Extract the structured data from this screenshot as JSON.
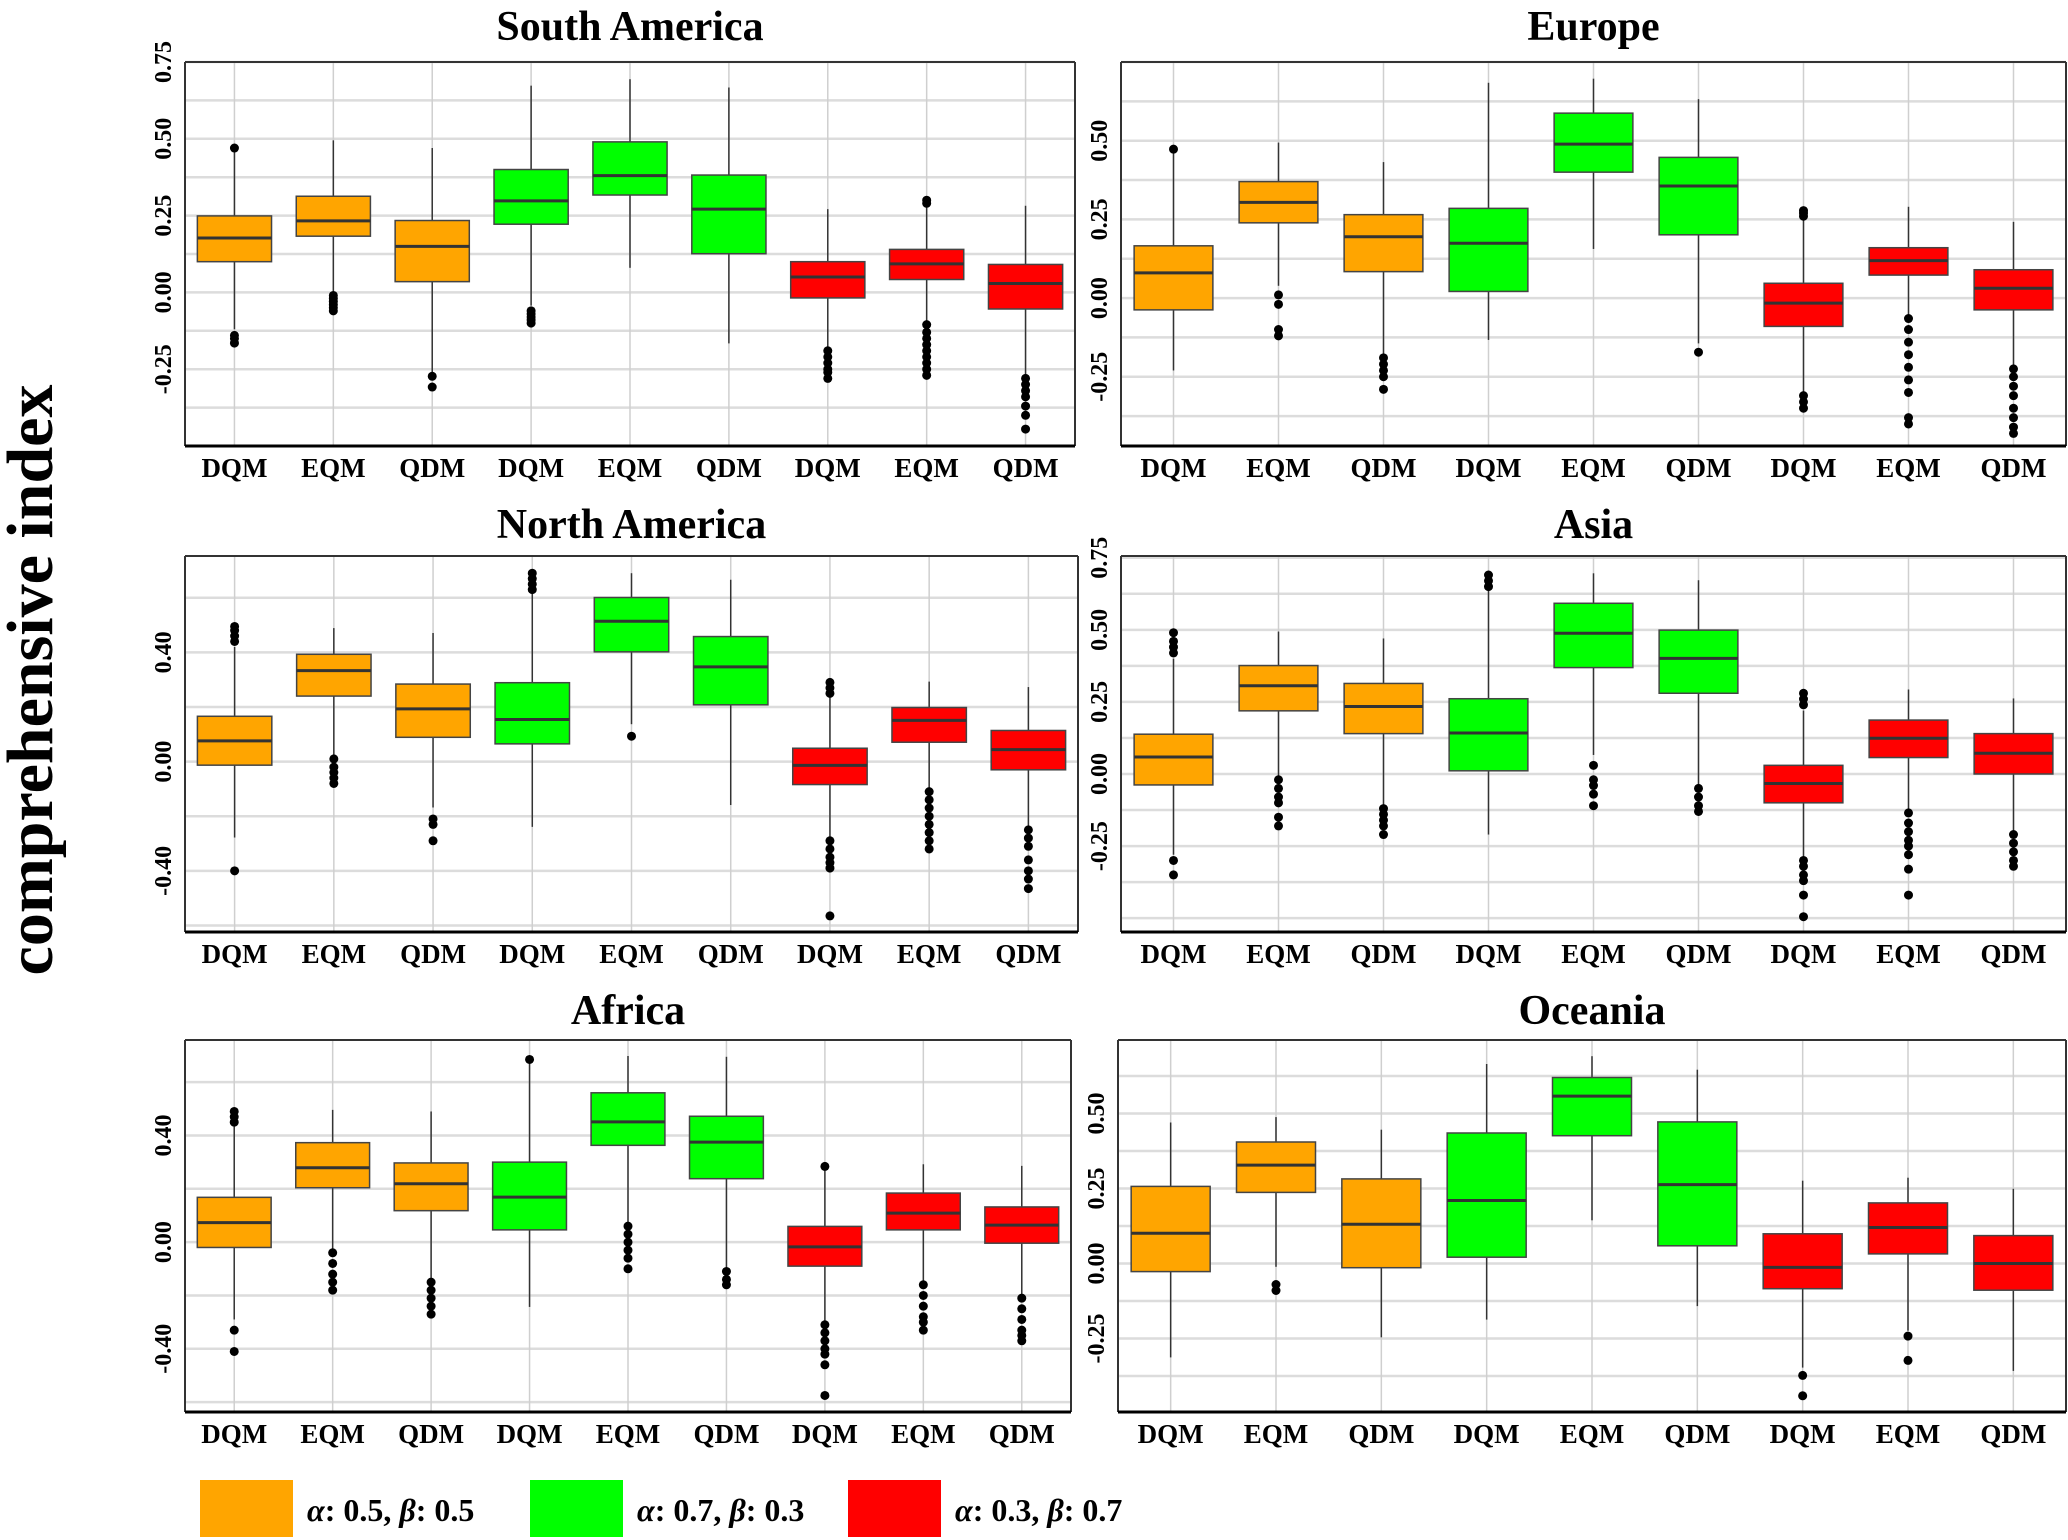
{
  "chart_data": {
    "type": "box",
    "ylabel": "comprehensive index",
    "categories": [
      "DQM",
      "EQM",
      "QDM",
      "DQM",
      "EQM",
      "QDM",
      "DQM",
      "EQM",
      "QDM"
    ],
    "groups": [
      "orange",
      "orange",
      "orange",
      "green",
      "green",
      "green",
      "red",
      "red",
      "red"
    ],
    "colors": {
      "orange": "#FFA500",
      "green": "#00FF00",
      "red": "#FF0000"
    },
    "legend": [
      {
        "group": "orange",
        "alpha_label": "α",
        "alpha_value": ": 0.5, ",
        "beta_label": "β",
        "beta_value": ": 0.5"
      },
      {
        "group": "green",
        "alpha_label": "α",
        "alpha_value": ": 0.7, ",
        "beta_label": "β",
        "beta_value": ": 0.3"
      },
      {
        "group": "red",
        "alpha_label": "α",
        "alpha_value": ": 0.3, ",
        "beta_label": "β",
        "beta_value": ": 0.7"
      }
    ],
    "box_fields": [
      "min",
      "q1",
      "median",
      "q3",
      "max",
      "outliers"
    ],
    "panels": [
      {
        "title": "South America",
        "ylim": [
          -0.5,
          0.75
        ],
        "ticks": [
          "-0.25",
          "0.00",
          "0.25",
          "0.50",
          "0.75"
        ],
        "tick_values": [
          -0.25,
          0,
          0.25,
          0.5,
          0.75
        ],
        "boxes": [
          [
            -0.12,
            0.1,
            0.177,
            0.249,
            0.46,
            [
              0.47,
              -0.14,
              -0.15,
              -0.165
            ]
          ],
          [
            -0.005,
            0.183,
            0.233,
            0.313,
            0.495,
            [
              -0.01,
              -0.02,
              -0.03,
              -0.04,
              -0.05,
              -0.06
            ]
          ],
          [
            -0.263,
            0.035,
            0.15,
            0.234,
            0.47,
            [
              -0.273,
              -0.308
            ]
          ],
          [
            -0.043,
            0.222,
            0.298,
            0.4,
            0.673,
            [
              -0.06,
              -0.07,
              -0.08,
              -0.09,
              -0.1
            ]
          ],
          [
            0.08,
            0.317,
            0.38,
            0.49,
            0.694,
            []
          ],
          [
            -0.166,
            0.126,
            0.271,
            0.382,
            0.667,
            []
          ],
          [
            -0.188,
            -0.018,
            0.05,
            0.1,
            0.271,
            [
              -0.19,
              -0.21,
              -0.23,
              -0.25,
              -0.26,
              -0.28
            ]
          ],
          [
            -0.102,
            0.042,
            0.093,
            0.14,
            0.28,
            [
              0.29,
              0.3,
              -0.105,
              -0.13,
              -0.15,
              -0.17,
              -0.19,
              -0.21,
              -0.23,
              -0.25,
              -0.27
            ]
          ],
          [
            -0.27,
            -0.054,
            0.029,
            0.091,
            0.282,
            [
              -0.28,
              -0.3,
              -0.32,
              -0.34,
              -0.37,
              -0.4,
              -0.445
            ]
          ]
        ]
      },
      {
        "title": "Europe",
        "ylim": [
          -0.47,
          0.75
        ],
        "ticks": [
          "-0.25",
          "0.00",
          "0.25",
          "0.50"
        ],
        "tick_values": [
          -0.25,
          0,
          0.25,
          0.5
        ],
        "boxes": [
          [
            -0.23,
            -0.0375,
            0.08,
            0.166,
            0.47,
            [
              0.473
            ]
          ],
          [
            0.039,
            0.239,
            0.304,
            0.37,
            0.494,
            [
              0.01,
              -0.02,
              -0.1,
              -0.12
            ]
          ],
          [
            -0.185,
            0.084,
            0.195,
            0.265,
            0.432,
            [
              -0.19,
              -0.21,
              -0.23,
              -0.25,
              -0.29
            ]
          ],
          [
            -0.133,
            0.021,
            0.174,
            0.285,
            0.684,
            []
          ],
          [
            0.156,
            0.4,
            0.489,
            0.5875,
            0.697,
            []
          ],
          [
            -0.144,
            0.201,
            0.356,
            0.447,
            0.632,
            [
              -0.172
            ]
          ],
          [
            -0.3,
            -0.09,
            -0.016,
            0.047,
            0.25,
            [
              0.26,
              0.27,
              0.278,
              -0.31,
              -0.33,
              -0.35
            ]
          ],
          [
            -0.06,
            0.073,
            0.119,
            0.16,
            0.29,
            [
              -0.065,
              -0.1,
              -0.14,
              -0.18,
              -0.22,
              -0.26,
              -0.3,
              -0.38,
              -0.4
            ]
          ],
          [
            -0.22,
            -0.0375,
            0.031,
            0.09,
            0.242,
            [
              -0.225,
              -0.25,
              -0.28,
              -0.31,
              -0.35,
              -0.38,
              -0.41,
              -0.43
            ]
          ]
        ]
      },
      {
        "title": "North America",
        "ylim": [
          -0.624,
          0.753
        ],
        "ticks": [
          "-0.40",
          "0.00",
          "0.40"
        ],
        "tick_values": [
          -0.4,
          0,
          0.4
        ],
        "boxes": [
          [
            -0.278,
            -0.013,
            0.076,
            0.166,
            0.42,
            [
              0.44,
              0.46,
              0.48,
              0.495,
              -0.4
            ]
          ],
          [
            0.02,
            0.24,
            0.333,
            0.393,
            0.489,
            [
              0.01,
              -0.02,
              -0.04,
              -0.06,
              -0.08
            ]
          ],
          [
            -0.168,
            0.089,
            0.193,
            0.284,
            0.471,
            [
              -0.21,
              -0.23,
              -0.29
            ]
          ],
          [
            -0.239,
            0.065,
            0.154,
            0.289,
            0.619,
            [
              0.63,
              0.65,
              0.67,
              0.69
            ]
          ],
          [
            0.137,
            0.402,
            0.514,
            0.601,
            0.69,
            [
              0.093
            ]
          ],
          [
            -0.159,
            0.208,
            0.347,
            0.458,
            0.666,
            []
          ],
          [
            -0.28,
            -0.084,
            -0.014,
            0.049,
            0.246,
            [
              0.25,
              0.27,
              0.29,
              -0.29,
              -0.32,
              -0.35,
              -0.37,
              -0.39,
              -0.565
            ]
          ],
          [
            -0.109,
            0.071,
            0.151,
            0.198,
            0.293,
            [
              -0.11,
              -0.14,
              -0.17,
              -0.2,
              -0.23,
              -0.26,
              -0.29,
              -0.32
            ]
          ],
          [
            -0.245,
            -0.03,
            0.044,
            0.114,
            0.273,
            [
              -0.25,
              -0.28,
              -0.31,
              -0.36,
              -0.4,
              -0.43,
              -0.465
            ]
          ]
        ]
      },
      {
        "title": "Asia",
        "ylim": [
          -0.548,
          0.756
        ],
        "ticks": [
          "-0.25",
          "0.00",
          "0.25",
          "0.50",
          "0.75"
        ],
        "tick_values": [
          -0.25,
          0,
          0.25,
          0.5,
          0.75
        ],
        "boxes": [
          [
            -0.28,
            -0.038,
            0.059,
            0.138,
            0.4,
            [
              0.42,
              0.44,
              0.46,
              0.49,
              -0.3,
              -0.35
            ]
          ],
          [
            -0.013,
            0.219,
            0.306,
            0.376,
            0.494,
            [
              -0.02,
              -0.05,
              -0.08,
              -0.1,
              -0.15,
              -0.18
            ]
          ],
          [
            -0.111,
            0.14,
            0.234,
            0.314,
            0.47,
            [
              -0.12,
              -0.14,
              -0.16,
              -0.18,
              -0.21
            ]
          ],
          [
            -0.21,
            0.011,
            0.142,
            0.261,
            0.635,
            [
              0.65,
              0.67,
              0.69
            ]
          ],
          [
            0.066,
            0.369,
            0.488,
            0.592,
            0.696,
            [
              0.03,
              -0.02,
              -0.04,
              -0.07,
              -0.11
            ]
          ],
          [
            -0.044,
            0.28,
            0.401,
            0.499,
            0.672,
            [
              -0.05,
              -0.08,
              -0.11,
              -0.13
            ]
          ],
          [
            -0.29,
            -0.1,
            -0.033,
            0.03,
            0.22,
            [
              0.24,
              0.26,
              0.28,
              -0.3,
              -0.32,
              -0.35,
              -0.37,
              -0.42,
              -0.495
            ]
          ],
          [
            -0.133,
            0.057,
            0.124,
            0.187,
            0.293,
            [
              -0.135,
              -0.17,
              -0.2,
              -0.23,
              -0.25,
              -0.28,
              -0.33,
              -0.42
            ]
          ],
          [
            -0.206,
            0,
            0.072,
            0.14,
            0.262,
            [
              -0.21,
              -0.24,
              -0.27,
              -0.3,
              -0.32
            ]
          ]
        ]
      },
      {
        "title": "Africa",
        "ylim": [
          -0.637,
          0.758
        ],
        "ticks": [
          "-0.40",
          "0.00",
          "0.40"
        ],
        "tick_values": [
          -0.4,
          0,
          0.4
        ],
        "boxes": [
          [
            -0.29,
            -0.02,
            0.073,
            0.168,
            0.44,
            [
              0.45,
              0.47,
              0.49,
              -0.33,
              -0.41
            ]
          ],
          [
            -0.038,
            0.204,
            0.279,
            0.373,
            0.496,
            [
              -0.04,
              -0.08,
              -0.12,
              -0.15,
              -0.18
            ]
          ],
          [
            -0.147,
            0.118,
            0.219,
            0.297,
            0.49,
            [
              -0.15,
              -0.18,
              -0.21,
              -0.24,
              -0.27
            ]
          ],
          [
            -0.243,
            0.046,
            0.169,
            0.3,
            0.67,
            [
              0.685
            ]
          ],
          [
            0.07,
            0.363,
            0.451,
            0.56,
            0.698,
            [
              0.06,
              0.03,
              0,
              -0.03,
              -0.06,
              -0.1
            ]
          ],
          [
            -0.105,
            0.238,
            0.375,
            0.472,
            0.695,
            [
              -0.11,
              -0.14,
              -0.16
            ]
          ],
          [
            -0.303,
            -0.09,
            -0.018,
            0.059,
            0.28,
            [
              0.284,
              -0.31,
              -0.34,
              -0.37,
              -0.4,
              -0.42,
              -0.46,
              -0.575
            ]
          ],
          [
            -0.159,
            0.046,
            0.109,
            0.184,
            0.292,
            [
              -0.16,
              -0.2,
              -0.24,
              -0.28,
              -0.3,
              -0.33
            ]
          ],
          [
            -0.2,
            -0.004,
            0.064,
            0.132,
            0.286,
            [
              -0.21,
              -0.25,
              -0.29,
              -0.33,
              -0.35,
              -0.37
            ]
          ]
        ]
      },
      {
        "title": "Oceania",
        "ylim": [
          -0.495,
          0.745
        ],
        "ticks": [
          "-0.25",
          "0.00",
          "0.25",
          "0.50"
        ],
        "tick_values": [
          -0.25,
          0,
          0.25,
          0.5
        ],
        "boxes": [
          [
            -0.313,
            -0.027,
            0.101,
            0.257,
            0.47,
            []
          ],
          [
            -0.011,
            0.237,
            0.328,
            0.405,
            0.488,
            [
              -0.07,
              -0.09
            ]
          ],
          [
            -0.246,
            -0.014,
            0.131,
            0.282,
            0.446,
            []
          ],
          [
            -0.187,
            0.021,
            0.21,
            0.435,
            0.665,
            []
          ],
          [
            0.144,
            0.426,
            0.558,
            0.62,
            0.691,
            []
          ],
          [
            -0.142,
            0.059,
            0.263,
            0.472,
            0.646,
            []
          ],
          [
            -0.347,
            -0.084,
            -0.013,
            0.099,
            0.276,
            [
              -0.373,
              -0.441
            ]
          ],
          [
            -0.224,
            0.032,
            0.12,
            0.202,
            0.286,
            [
              -0.242,
              -0.323
            ]
          ],
          [
            -0.358,
            -0.089,
            0,
            0.093,
            0.249,
            []
          ]
        ]
      }
    ]
  }
}
